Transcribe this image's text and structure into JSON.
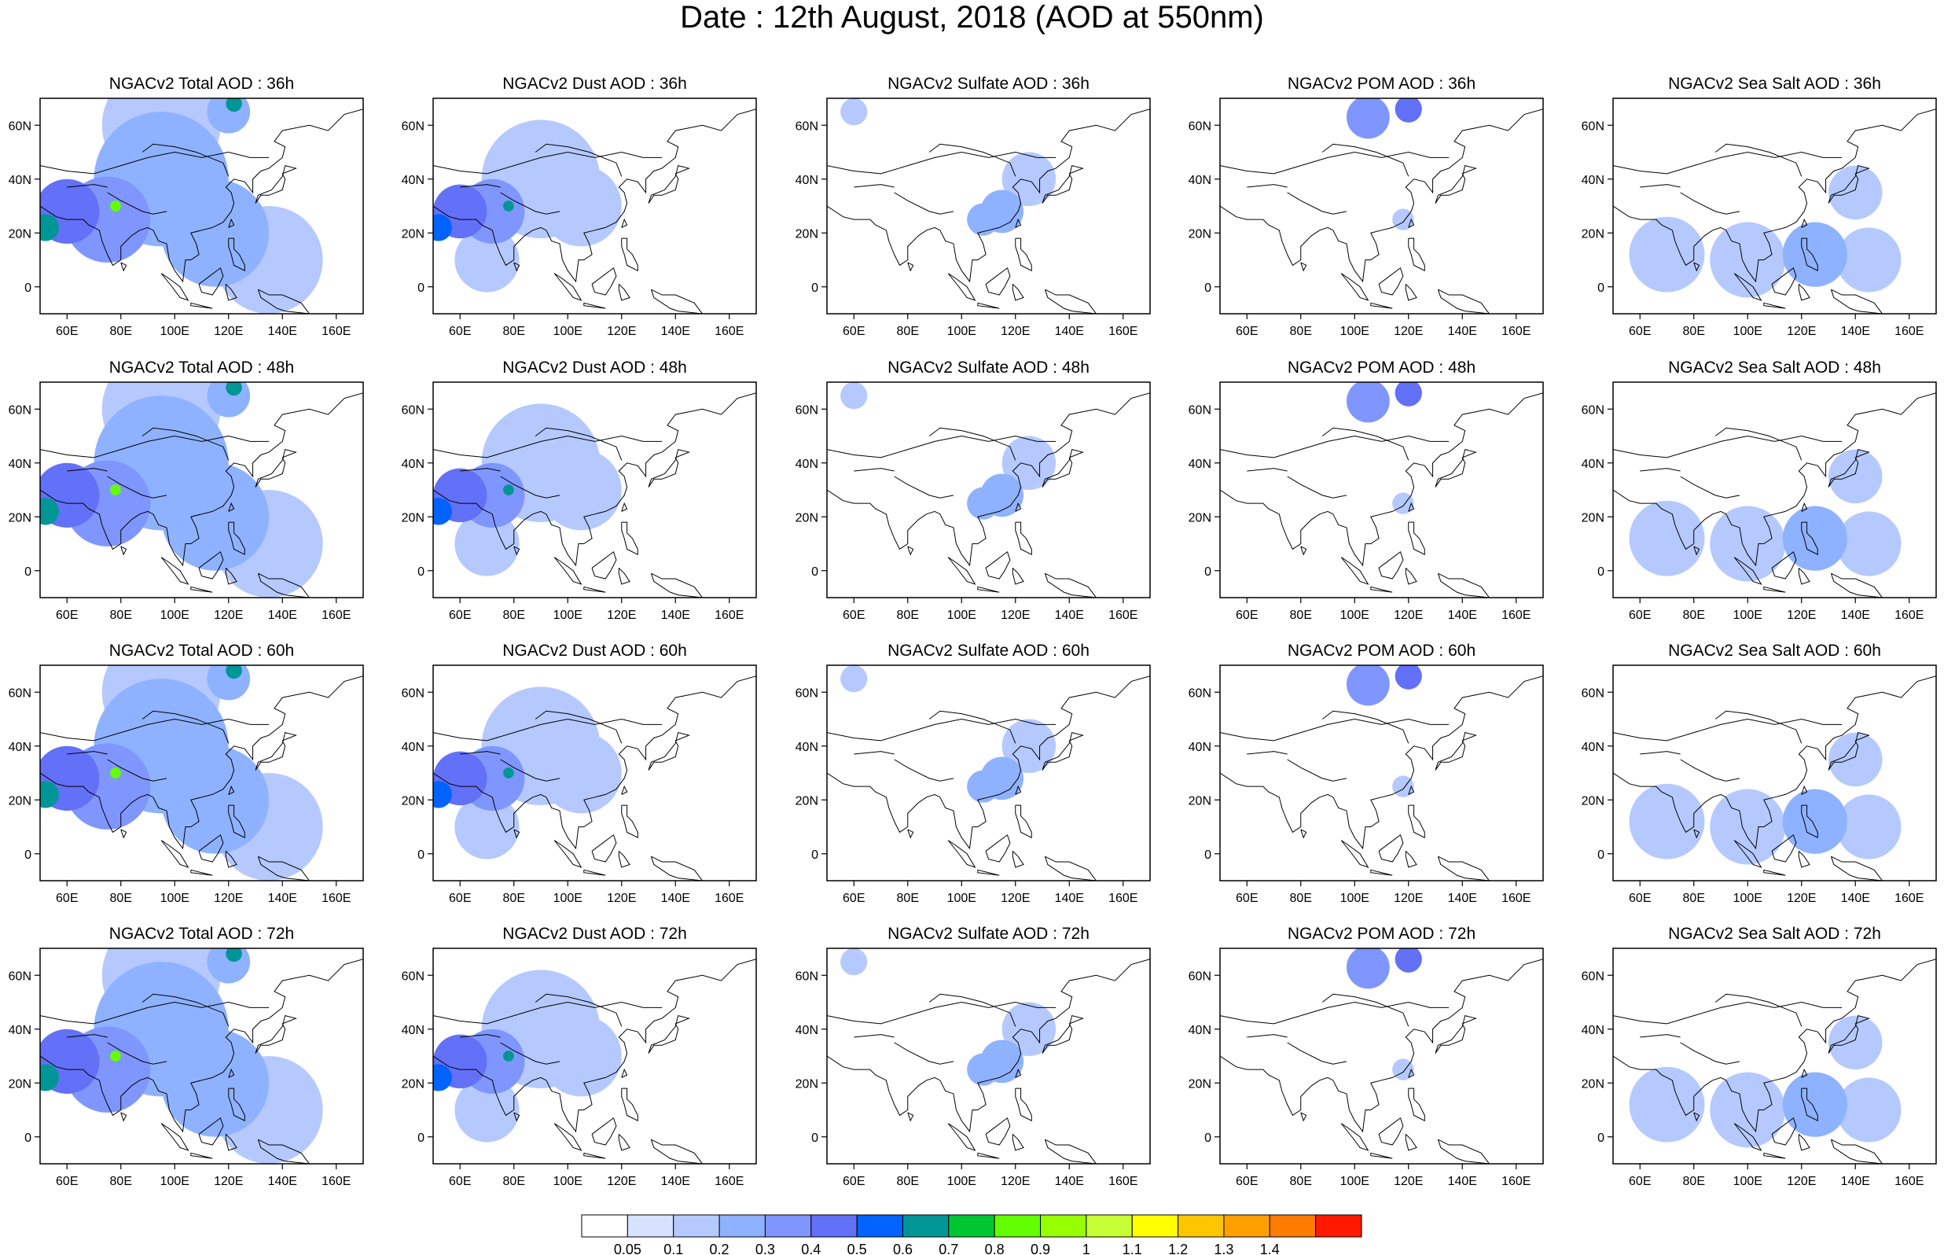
{
  "figure": {
    "title": "Date : 12th August, 2018 (AOD at 550nm)"
  },
  "axes": {
    "lon_ticks": [
      "60E",
      "80E",
      "100E",
      "120E",
      "140E",
      "160E"
    ],
    "lat_ticks": [
      "60N",
      "40N",
      "20N",
      "0"
    ],
    "lon_values": [
      60,
      80,
      100,
      120,
      140,
      160
    ],
    "lat_values": [
      60,
      40,
      20,
      0
    ],
    "lon_range": [
      50,
      170
    ],
    "lat_range": [
      -10,
      70
    ]
  },
  "panels": [
    [
      "NGACv2 Total AOD : 36h",
      "NGACv2 Dust AOD : 36h",
      "NGACv2 Sulfate AOD : 36h",
      "NGACv2 POM AOD : 36h",
      "NGACv2 Sea Salt AOD : 36h"
    ],
    [
      "NGACv2 Total AOD : 48h",
      "NGACv2 Dust AOD : 48h",
      "NGACv2 Sulfate AOD : 48h",
      "NGACv2 POM AOD : 48h",
      "NGACv2 Sea Salt AOD : 48h"
    ],
    [
      "NGACv2 Total AOD : 60h",
      "NGACv2 Dust AOD : 60h",
      "NGACv2 Sulfate AOD : 60h",
      "NGACv2 POM AOD : 60h",
      "NGACv2 Sea Salt AOD : 60h"
    ],
    [
      "NGACv2 Total AOD : 72h",
      "NGACv2 Dust AOD : 72h",
      "NGACv2 Sulfate AOD : 72h",
      "NGACv2 POM AOD : 72h",
      "NGACv2 Sea Salt  AOD : 72h"
    ]
  ],
  "colorbar": {
    "labels": [
      "0.05",
      "0.1",
      "0.2",
      "0.3",
      "0.4",
      "0.5",
      "0.6",
      "0.7",
      "0.8",
      "0.9",
      "1",
      "1.1",
      "1.2",
      "1.3",
      "1.4"
    ],
    "colors": [
      "#ffffff",
      "#d6e2ff",
      "#b5c9ff",
      "#8eb2ff",
      "#7f96ff",
      "#6370f8",
      "#0063ff",
      "#009696",
      "#00c633",
      "#63ff00",
      "#96ff00",
      "#c6ff33",
      "#ffff00",
      "#ffc600",
      "#ffa000",
      "#ff7c00",
      "#ff1900"
    ]
  },
  "chart_data": {
    "type": "heatmap",
    "variable": "AOD at 550nm",
    "rows": [
      "36h",
      "48h",
      "60h",
      "72h"
    ],
    "columns": [
      "Total",
      "Dust",
      "Sulfate",
      "POM",
      "Sea Salt"
    ],
    "fields": {
      "Total": [
        {
          "lon": 52,
          "lat": 22,
          "val": 0.6,
          "r": 5
        },
        {
          "lon": 60,
          "lat": 28,
          "val": 0.4,
          "r": 12
        },
        {
          "lon": 75,
          "lat": 25,
          "val": 0.3,
          "r": 16
        },
        {
          "lon": 78,
          "lat": 30,
          "val": 0.8,
          "r": 2
        },
        {
          "lon": 95,
          "lat": 40,
          "val": 0.2,
          "r": 25
        },
        {
          "lon": 115,
          "lat": 20,
          "val": 0.2,
          "r": 20
        },
        {
          "lon": 135,
          "lat": 10,
          "val": 0.15,
          "r": 20
        },
        {
          "lon": 95,
          "lat": 60,
          "val": 0.15,
          "r": 22
        },
        {
          "lon": 120,
          "lat": 65,
          "val": 0.25,
          "r": 8
        },
        {
          "lon": 122,
          "lat": 68,
          "val": 0.6,
          "r": 3
        }
      ],
      "Dust": [
        {
          "lon": 52,
          "lat": 22,
          "val": 0.55,
          "r": 5
        },
        {
          "lon": 60,
          "lat": 28,
          "val": 0.4,
          "r": 10
        },
        {
          "lon": 72,
          "lat": 28,
          "val": 0.3,
          "r": 12
        },
        {
          "lon": 78,
          "lat": 30,
          "val": 0.6,
          "r": 2
        },
        {
          "lon": 90,
          "lat": 40,
          "val": 0.15,
          "r": 22
        },
        {
          "lon": 105,
          "lat": 30,
          "val": 0.12,
          "r": 15
        },
        {
          "lon": 70,
          "lat": 10,
          "val": 0.15,
          "r": 12
        }
      ],
      "Sulfate": [
        {
          "lon": 115,
          "lat": 28,
          "val": 0.2,
          "r": 8
        },
        {
          "lon": 108,
          "lat": 25,
          "val": 0.2,
          "r": 6
        },
        {
          "lon": 125,
          "lat": 40,
          "val": 0.12,
          "r": 10
        },
        {
          "lon": 60,
          "lat": 65,
          "val": 0.1,
          "r": 5
        }
      ],
      "POM": [
        {
          "lon": 105,
          "lat": 63,
          "val": 0.3,
          "r": 8
        },
        {
          "lon": 120,
          "lat": 66,
          "val": 0.45,
          "r": 5
        },
        {
          "lon": 118,
          "lat": 25,
          "val": 0.12,
          "r": 4
        }
      ],
      "Sea Salt": [
        {
          "lon": 70,
          "lat": 12,
          "val": 0.15,
          "r": 14
        },
        {
          "lon": 100,
          "lat": 10,
          "val": 0.15,
          "r": 14
        },
        {
          "lon": 125,
          "lat": 12,
          "val": 0.2,
          "r": 12
        },
        {
          "lon": 145,
          "lat": 10,
          "val": 0.15,
          "r": 12
        },
        {
          "lon": 140,
          "lat": 35,
          "val": 0.12,
          "r": 10
        }
      ]
    }
  }
}
